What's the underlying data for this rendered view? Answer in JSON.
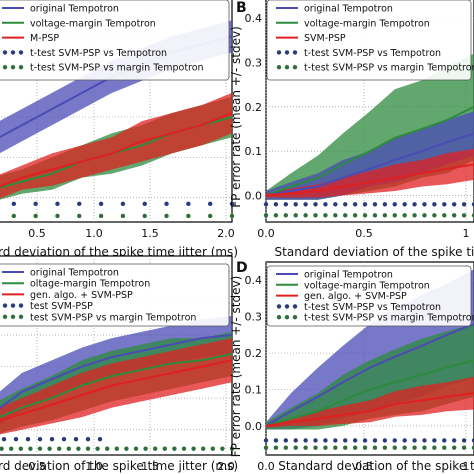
{
  "chart_data": [
    {
      "panel": "A",
      "panel_letter": "",
      "type": "line",
      "xlabel": "rd deviation of the spike time jitter (ms)",
      "ylabel": "",
      "x_ticks": [
        "0.5",
        "1.0",
        "1.5",
        "2.0"
      ],
      "y_ticks": [],
      "xlim": [
        0.0,
        2.0
      ],
      "ylim": [
        -0.06,
        0.5
      ],
      "grid": true,
      "legend_position": "top",
      "legend": [
        {
          "label": "original Tempotron",
          "kind": "line",
          "color": "#4b4bb5"
        },
        {
          "label": "voltage-margin Tempotron",
          "kind": "line",
          "color": "#2e8b3e"
        },
        {
          "label": "M-PSP",
          "kind": "line",
          "color": "#e02020"
        },
        {
          "label": "t-test SVM-PSP vs Tempotron",
          "kind": "dots",
          "color": "#2b3a7a"
        },
        {
          "label": "t-test SVM-PSP vs margin Tempotron",
          "kind": "dots",
          "color": "#2f6e3b"
        }
      ],
      "series": [
        {
          "name": "original Tempotron",
          "color": "#4b4bb5",
          "x": [
            0.0,
            0.25,
            0.5,
            0.75,
            1.0,
            1.25,
            1.5,
            1.75,
            2.0
          ],
          "y": [
            0.14,
            0.18,
            0.22,
            0.26,
            0.3,
            0.33,
            0.36,
            0.38,
            0.4
          ],
          "spread": [
            0.04,
            0.04,
            0.04,
            0.04,
            0.04,
            0.04,
            0.04,
            0.04,
            0.04
          ]
        },
        {
          "name": "voltage-margin Tempotron",
          "color": "#2e8b3e",
          "x": [
            0.0,
            0.25,
            0.5,
            0.75,
            1.0,
            1.25,
            1.5,
            1.75,
            2.0
          ],
          "y": [
            0.02,
            0.04,
            0.06,
            0.09,
            0.11,
            0.13,
            0.16,
            0.18,
            0.2
          ],
          "spread": [
            0.03,
            0.03,
            0.04,
            0.04,
            0.05,
            0.05,
            0.05,
            0.05,
            0.05
          ]
        },
        {
          "name": "M-PSP",
          "color": "#e02020",
          "x": [
            0.0,
            0.25,
            0.5,
            0.75,
            1.0,
            1.25,
            1.5,
            1.75,
            2.0
          ],
          "y": [
            0.02,
            0.05,
            0.07,
            0.09,
            0.11,
            0.14,
            0.16,
            0.18,
            0.21
          ],
          "spread": [
            0.03,
            0.03,
            0.04,
            0.04,
            0.04,
            0.05,
            0.05,
            0.05,
            0.05
          ]
        }
      ],
      "significance_rows": [
        {
          "color": "#2b3a7a",
          "y": -0.015,
          "x_from": 0.0,
          "x_to": 2.0,
          "count": 12
        },
        {
          "color": "#2f6e3b",
          "y": -0.045,
          "x_from": 0.0,
          "x_to": 2.0,
          "count": 12
        }
      ]
    },
    {
      "panel": "B",
      "panel_letter": "B",
      "type": "line",
      "xlabel": "Standard deviation of the spike time",
      "ylabel": "FP error rate (mean +/- stdev)",
      "x_ticks": [
        "0.0",
        "0.5",
        "1"
      ],
      "y_ticks": [
        "0.0",
        "0.1",
        "0.2",
        "0.3",
        "0.4"
      ],
      "xlim": [
        0.0,
        1.0
      ],
      "ylim": [
        -0.06,
        0.45
      ],
      "grid": true,
      "legend_position": "top",
      "legend": [
        {
          "label": "original Tempotron",
          "kind": "line",
          "color": "#4b4bb5"
        },
        {
          "label": "voltage-margin Tempotron",
          "kind": "line",
          "color": "#2e8b3e"
        },
        {
          "label": "SVM-PSP",
          "kind": "line",
          "color": "#e02020"
        },
        {
          "label": "t-test SVM-PSP vs Tempotron",
          "kind": "dots",
          "color": "#2b3a7a"
        },
        {
          "label": "t-test SVM-PSP vs margin Tempotron",
          "kind": "dots",
          "color": "#2f6e3b"
        }
      ],
      "series": [
        {
          "name": "voltage-margin Tempotron",
          "color": "#2e8b3e",
          "x": [
            0.0,
            0.12,
            0.25,
            0.37,
            0.5,
            0.62,
            0.75,
            0.87,
            1.0
          ],
          "y": [
            0.0,
            0.02,
            0.04,
            0.07,
            0.1,
            0.13,
            0.15,
            0.17,
            0.2
          ],
          "spread": [
            0.01,
            0.03,
            0.05,
            0.07,
            0.09,
            0.11,
            0.11,
            0.12,
            0.12
          ]
        },
        {
          "name": "original Tempotron",
          "color": "#4b4bb5",
          "x": [
            0.0,
            0.12,
            0.25,
            0.37,
            0.5,
            0.62,
            0.75,
            0.87,
            1.0
          ],
          "y": [
            0.0,
            0.01,
            0.02,
            0.04,
            0.06,
            0.08,
            0.1,
            0.12,
            0.14
          ],
          "spread": [
            0.01,
            0.02,
            0.03,
            0.04,
            0.04,
            0.05,
            0.05,
            0.05,
            0.05
          ]
        },
        {
          "name": "SVM-PSP",
          "color": "#e02020",
          "x": [
            0.0,
            0.12,
            0.25,
            0.37,
            0.5,
            0.62,
            0.75,
            0.87,
            1.0
          ],
          "y": [
            0.0,
            0.005,
            0.01,
            0.02,
            0.03,
            0.04,
            0.05,
            0.06,
            0.07
          ],
          "spread": [
            0.005,
            0.01,
            0.015,
            0.02,
            0.025,
            0.03,
            0.03,
            0.035,
            0.035
          ]
        }
      ],
      "significance_rows": [
        {
          "color": "#2b3a7a",
          "y": -0.02,
          "x_from": 0.0,
          "x_to": 1.0,
          "count": 22
        },
        {
          "color": "#2f6e3b",
          "y": -0.045,
          "x_from": 0.0,
          "x_to": 1.0,
          "count": 22
        }
      ]
    },
    {
      "panel": "C",
      "panel_letter": "",
      "type": "line",
      "xlabel": "rd deviation of the spike time jitter (ms)",
      "ylabel": "",
      "x_ticks": [
        "0.5",
        "1.0",
        "1.5",
        "2.0"
      ],
      "y_ticks": [],
      "xlim": [
        0.0,
        2.0
      ],
      "ylim": [
        -0.08,
        0.55
      ],
      "grid": true,
      "legend_position": "top",
      "legend": [
        {
          "label": "original Tempotron",
          "kind": "line",
          "color": "#4b4bb5"
        },
        {
          "label": "oltage-margin Tempotron",
          "kind": "line",
          "color": "#2e8b3e"
        },
        {
          "label": "gen. algo. + SVM-PSP",
          "kind": "line",
          "color": "#e02020"
        },
        {
          "label": "test SVM-PSP",
          "kind": "dots",
          "color": "#2b3a7a"
        },
        {
          "label": "test SVM-PSP vs margin Tempotron",
          "kind": "dots",
          "color": "#2f6e3b"
        }
      ],
      "series": [
        {
          "name": "original Tempotron",
          "color": "#4b4bb5",
          "x": [
            0.0,
            0.25,
            0.5,
            0.75,
            1.0,
            1.25,
            1.5,
            1.75,
            2.0
          ],
          "y": [
            0.05,
            0.12,
            0.16,
            0.2,
            0.23,
            0.25,
            0.27,
            0.29,
            0.3
          ],
          "spread": [
            0.05,
            0.06,
            0.06,
            0.06,
            0.06,
            0.06,
            0.06,
            0.06,
            0.06
          ]
        },
        {
          "name": "voltage-margin Tempotron",
          "color": "#2e8b3e",
          "x": [
            0.0,
            0.25,
            0.5,
            0.75,
            1.0,
            1.25,
            1.5,
            1.75,
            2.0
          ],
          "y": [
            0.03,
            0.07,
            0.1,
            0.14,
            0.17,
            0.19,
            0.21,
            0.22,
            0.24
          ],
          "spread": [
            0.05,
            0.06,
            0.07,
            0.08,
            0.08,
            0.08,
            0.08,
            0.07,
            0.07
          ]
        },
        {
          "name": "gen. algo. + SVM-PSP",
          "color": "#e02020",
          "x": [
            0.0,
            0.25,
            0.5,
            0.75,
            1.0,
            1.25,
            1.5,
            1.75,
            2.0
          ],
          "y": [
            0.02,
            0.05,
            0.08,
            0.11,
            0.14,
            0.16,
            0.18,
            0.2,
            0.22
          ],
          "spread": [
            0.04,
            0.05,
            0.06,
            0.07,
            0.07,
            0.07,
            0.07,
            0.07,
            0.07
          ]
        }
      ],
      "significance_rows": [
        {
          "color": "#2b3a7a",
          "y": -0.03,
          "x_from": 0.0,
          "x_to": 0.9,
          "count": 10
        },
        {
          "color": "#2f6e3b",
          "y": -0.06,
          "x_from": 0.0,
          "x_to": 2.0,
          "count": 26
        }
      ]
    },
    {
      "panel": "D",
      "panel_letter": "D",
      "type": "line",
      "xlabel": "Standard deviation of the spike tim",
      "ylabel": "FP error rate (mean +/- stdev)",
      "x_ticks": [
        "0.0",
        "0.5",
        "1"
      ],
      "y_ticks": [
        "0.0",
        "0.1",
        "0.2",
        "0.3",
        "0.4"
      ],
      "xlim": [
        0.0,
        1.0
      ],
      "ylim": [
        -0.08,
        0.45
      ],
      "grid": true,
      "legend_position": "top",
      "legend": [
        {
          "label": "original Tempotron",
          "kind": "line",
          "color": "#4b4bb5"
        },
        {
          "label": "voltage-margin Tempotron",
          "kind": "line",
          "color": "#2e8b3e"
        },
        {
          "label": "gen. algo. + SVM-PSP",
          "kind": "line",
          "color": "#e02020"
        },
        {
          "label": "t-test SVM-PSP vs Tempotron",
          "kind": "dots",
          "color": "#2b3a7a"
        },
        {
          "label": "t-test SVM-PSP vs margin Tempotron",
          "kind": "dots",
          "color": "#2f6e3b"
        }
      ],
      "series": [
        {
          "name": "original Tempotron",
          "color": "#4b4bb5",
          "x": [
            0.0,
            0.12,
            0.25,
            0.37,
            0.5,
            0.62,
            0.75,
            0.87,
            1.0
          ],
          "y": [
            0.0,
            0.04,
            0.08,
            0.12,
            0.16,
            0.19,
            0.22,
            0.25,
            0.28
          ],
          "spread": [
            0.01,
            0.05,
            0.08,
            0.1,
            0.12,
            0.13,
            0.14,
            0.14,
            0.15
          ]
        },
        {
          "name": "voltage-margin Tempotron",
          "color": "#2e8b3e",
          "x": [
            0.0,
            0.12,
            0.25,
            0.37,
            0.5,
            0.62,
            0.75,
            0.87,
            1.0
          ],
          "y": [
            0.0,
            0.02,
            0.04,
            0.07,
            0.1,
            0.12,
            0.14,
            0.16,
            0.18
          ],
          "spread": [
            0.01,
            0.03,
            0.05,
            0.07,
            0.08,
            0.09,
            0.1,
            0.1,
            0.1
          ]
        },
        {
          "name": "gen. algo. + SVM-PSP",
          "color": "#e02020",
          "x": [
            0.0,
            0.12,
            0.25,
            0.37,
            0.5,
            0.62,
            0.75,
            0.87,
            1.0
          ],
          "y": [
            0.0,
            0.01,
            0.02,
            0.03,
            0.04,
            0.06,
            0.07,
            0.08,
            0.09
          ],
          "spread": [
            0.005,
            0.01,
            0.02,
            0.025,
            0.03,
            0.035,
            0.04,
            0.04,
            0.045
          ]
        }
      ],
      "significance_rows": [
        {
          "color": "#2b3a7a",
          "y": -0.04,
          "x_from": 0.0,
          "x_to": 1.0,
          "count": 22
        },
        {
          "color": "#2f6e3b",
          "y": -0.06,
          "x_from": 0.0,
          "x_to": 1.0,
          "count": 22
        }
      ]
    }
  ]
}
